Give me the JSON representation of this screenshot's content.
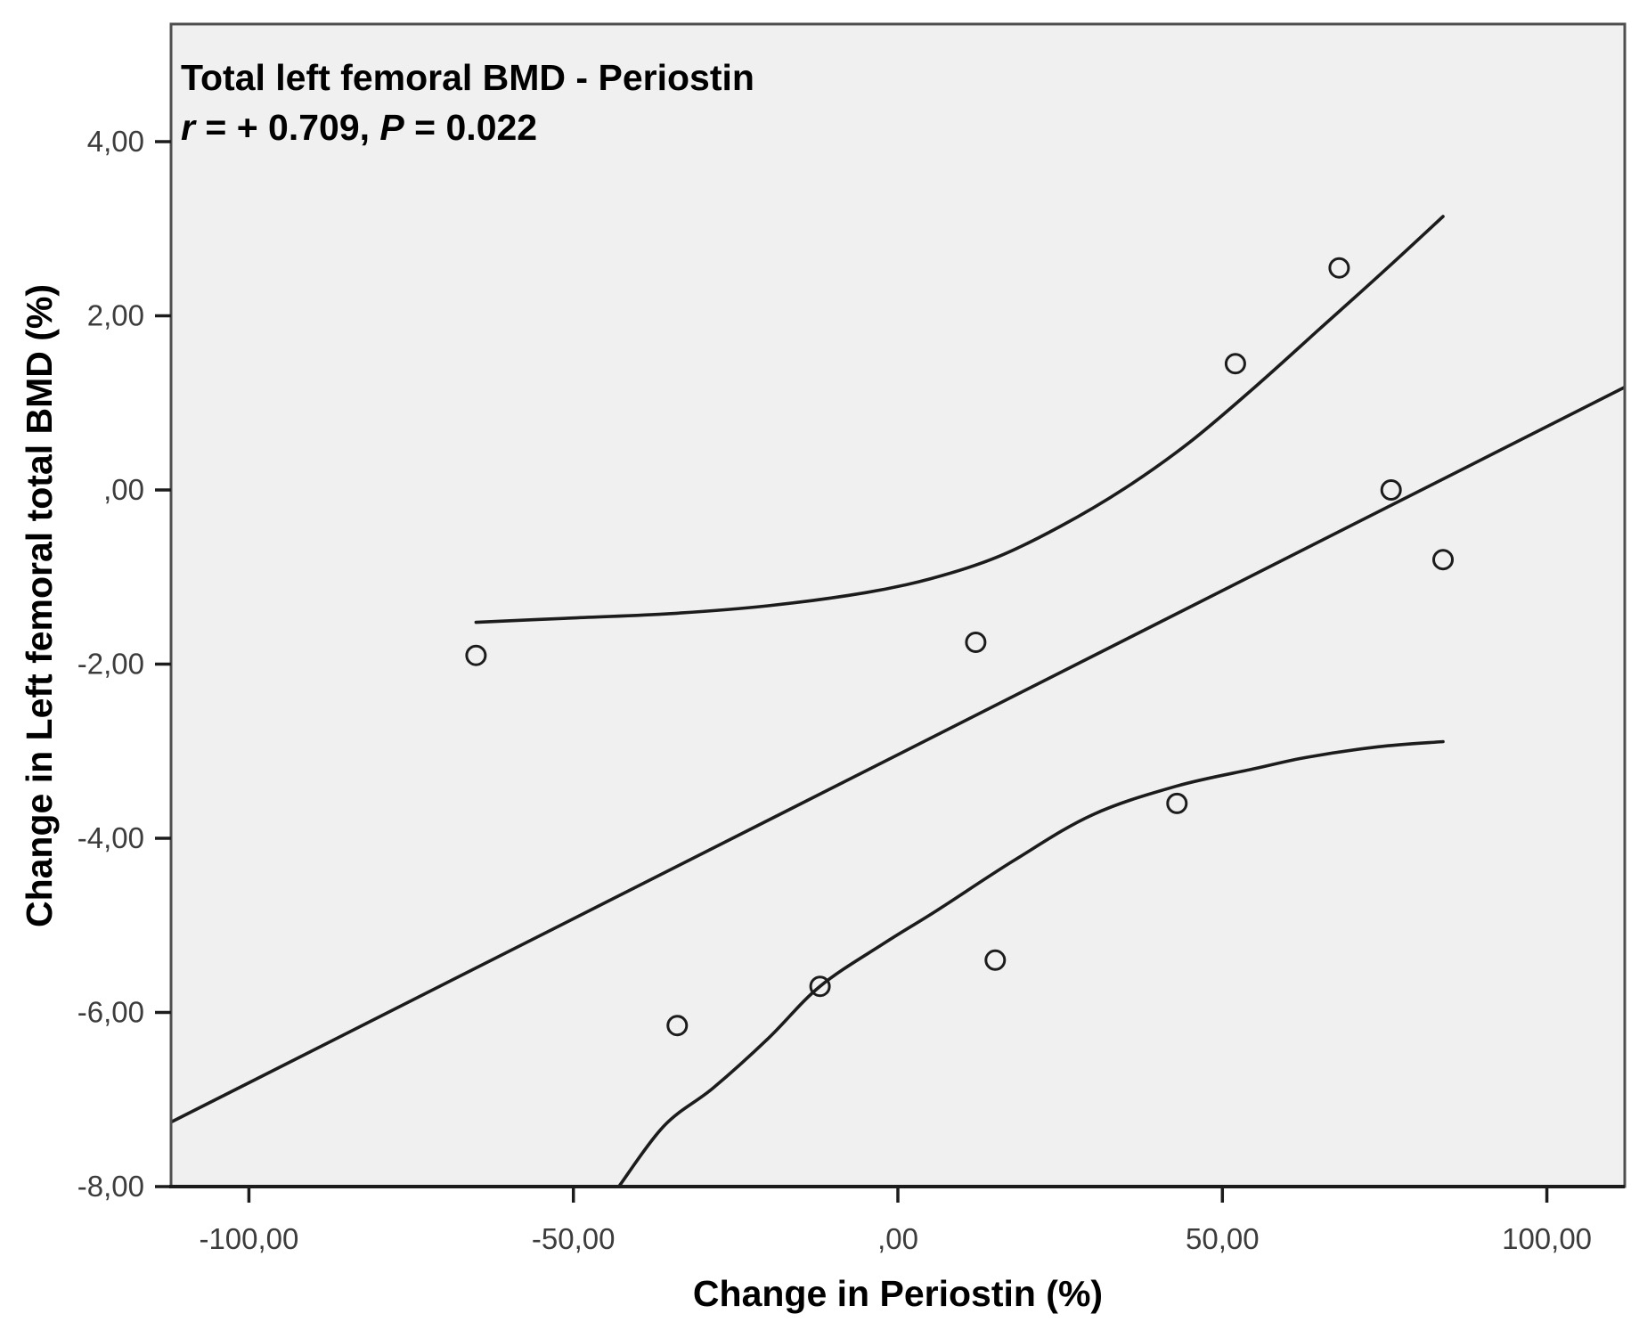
{
  "figure": {
    "background": "#ffffff",
    "plot_background": "#f0f0f0",
    "frame_color": "#4f4f4f",
    "axis_color": "#1c1c1c",
    "line_color": "#1c1c1c",
    "tick_label_color": "#3c3c3c",
    "text_color": "#000000"
  },
  "chart_data": {
    "type": "scatter",
    "title": "Total left femoral BMD - Periostin",
    "annotation": {
      "r_symbol": "r",
      "r_rest": " = + 0.709, ",
      "p_symbol": "P",
      "p_rest": " = 0.022"
    },
    "xlabel": "Change in Periostin (%)",
    "ylabel": "Change in Left femoral total BMD (%)",
    "xlim": [
      -112,
      112
    ],
    "ylim": [
      -8,
      5.35
    ],
    "grid": false,
    "legend": false,
    "x_ticks": [
      {
        "v": -100,
        "label": "-100,00"
      },
      {
        "v": -50,
        "label": "-50,00"
      },
      {
        "v": 0,
        "label": ",00"
      },
      {
        "v": 50,
        "label": "50,00"
      },
      {
        "v": 100,
        "label": "100,00"
      }
    ],
    "y_ticks": [
      {
        "v": 4,
        "label": "4,00"
      },
      {
        "v": 2,
        "label": "2,00"
      },
      {
        "v": 0,
        "label": ",00"
      },
      {
        "v": -2,
        "label": "-2,00"
      },
      {
        "v": -4,
        "label": "-4,00"
      },
      {
        "v": -6,
        "label": "-6,00"
      },
      {
        "v": -8,
        "label": "-8,00"
      }
    ],
    "points": [
      [
        -65,
        -1.9
      ],
      [
        -34,
        -6.15
      ],
      [
        -12,
        -5.7
      ],
      [
        12,
        -1.75
      ],
      [
        15,
        -5.4
      ],
      [
        43,
        -3.6
      ],
      [
        52,
        1.45
      ],
      [
        68,
        2.55
      ],
      [
        76,
        0.0
      ],
      [
        84,
        -0.8
      ]
    ],
    "fit_line": {
      "x1": -112,
      "y1": -7.26,
      "x2": 112,
      "y2": 1.18
    },
    "ci_upper": [
      [
        -65,
        -1.52
      ],
      [
        -50,
        -1.47
      ],
      [
        -35,
        -1.42
      ],
      [
        -20,
        -1.33
      ],
      [
        -5,
        -1.18
      ],
      [
        5,
        -1.02
      ],
      [
        15,
        -0.78
      ],
      [
        25,
        -0.42
      ],
      [
        35,
        0.02
      ],
      [
        45,
        0.55
      ],
      [
        55,
        1.18
      ],
      [
        65,
        1.85
      ],
      [
        75,
        2.52
      ],
      [
        84,
        3.14
      ]
    ],
    "ci_lower": [
      [
        -43,
        -8.0
      ],
      [
        -36,
        -7.3
      ],
      [
        -28.5,
        -6.87
      ],
      [
        -20,
        -6.3
      ],
      [
        -12,
        -5.7
      ],
      [
        -2,
        -5.2
      ],
      [
        6,
        -4.83
      ],
      [
        18,
        -4.25
      ],
      [
        30,
        -3.73
      ],
      [
        43,
        -3.4
      ],
      [
        55,
        -3.2
      ],
      [
        63,
        -3.07
      ],
      [
        74,
        -2.95
      ],
      [
        84,
        -2.89
      ]
    ],
    "marker_radius": 10.5
  }
}
